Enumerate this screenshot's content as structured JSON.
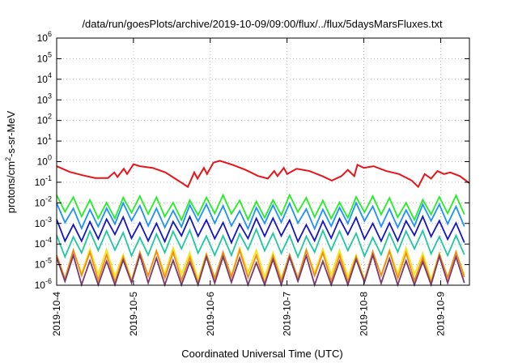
{
  "chart_data": {
    "type": "line",
    "title": "/data/run/goesPlots/archive/2019-10-09/09:00/flux/../flux/5daysMarsFluxes.txt",
    "xlabel": "Coordinated Universal Time (UTC)",
    "ylabel": {
      "pre": "protons/cm",
      "sup": "2",
      "post": "-s-sr-MeV"
    },
    "yscale": "log",
    "ylim": [
      1e-06,
      1000000.0
    ],
    "xlim": [
      "2019-10-04T00:00",
      "2019-10-09T09:00"
    ],
    "grid": true,
    "y_ticks": [
      {
        "value": 1e-06,
        "base": "10",
        "exp": "-6"
      },
      {
        "value": 1e-05,
        "base": "10",
        "exp": "-5"
      },
      {
        "value": 0.0001,
        "base": "10",
        "exp": "-4"
      },
      {
        "value": 0.001,
        "base": "10",
        "exp": "-3"
      },
      {
        "value": 0.01,
        "base": "10",
        "exp": "-2"
      },
      {
        "value": 0.1,
        "base": "10",
        "exp": "-1"
      },
      {
        "value": 1.0,
        "base": "10",
        "exp": "0"
      },
      {
        "value": 10.0,
        "base": "10",
        "exp": "1"
      },
      {
        "value": 100.0,
        "base": "10",
        "exp": "2"
      },
      {
        "value": 1000.0,
        "base": "10",
        "exp": "3"
      },
      {
        "value": 10000.0,
        "base": "10",
        "exp": "4"
      },
      {
        "value": 100000.0,
        "base": "10",
        "exp": "5"
      },
      {
        "value": 1000000.0,
        "base": "10",
        "exp": "6"
      }
    ],
    "x_ticks": [
      "2019-10-4",
      "2019-10-5",
      "2019-10-6",
      "2019-10-7",
      "2019-10-8",
      "2019-10-9"
    ],
    "series": [
      {
        "color": "#e8141a",
        "x": [
          "2019-10-04T00:00",
          "2019-10-04T04:00",
          "2019-10-04T08:00",
          "2019-10-04T12:00",
          "2019-10-04T16:00",
          "2019-10-04T18:00",
          "2019-10-04T19:00",
          "2019-10-04T21:00",
          "2019-10-04T22:00",
          "2019-10-05T00:00",
          "2019-10-05T02:00",
          "2019-10-05T06:00",
          "2019-10-05T10:00",
          "2019-10-05T14:00",
          "2019-10-05T17:00",
          "2019-10-05T19:00",
          "2019-10-05T20:00",
          "2019-10-05T22:00",
          "2019-10-05T23:00",
          "2019-10-06T01:00",
          "2019-10-06T03:00",
          "2019-10-06T07:00",
          "2019-10-06T11:00",
          "2019-10-06T15:00",
          "2019-10-06T18:00",
          "2019-10-06T20:00",
          "2019-10-06T21:00",
          "2019-10-06T23:00",
          "2019-10-07T00:00",
          "2019-10-07T03:00",
          "2019-10-07T07:00",
          "2019-10-07T11:00",
          "2019-10-07T14:00",
          "2019-10-07T17:00",
          "2019-10-07T19:00",
          "2019-10-07T21:00",
          "2019-10-07T22:00",
          "2019-10-08T00:00",
          "2019-10-08T03:00",
          "2019-10-08T07:00",
          "2019-10-08T11:00",
          "2019-10-08T15:00",
          "2019-10-08T17:00",
          "2019-10-08T19:00",
          "2019-10-08T21:00",
          "2019-10-08T23:00",
          "2019-10-09T01:00",
          "2019-10-09T03:00",
          "2019-10-09T06:00",
          "2019-10-09T09:00"
        ],
        "y": [
          0.6,
          0.32,
          0.22,
          0.16,
          0.16,
          0.3,
          0.18,
          0.45,
          0.25,
          0.75,
          0.6,
          0.5,
          0.3,
          0.12,
          0.06,
          0.3,
          0.15,
          0.5,
          0.25,
          0.9,
          1.1,
          0.7,
          0.4,
          0.2,
          0.15,
          0.35,
          0.2,
          0.5,
          0.25,
          0.45,
          0.35,
          0.2,
          0.12,
          0.2,
          0.4,
          0.2,
          0.7,
          0.5,
          0.6,
          0.35,
          0.25,
          0.12,
          0.06,
          0.25,
          0.15,
          0.35,
          0.25,
          0.3,
          0.2,
          0.09
        ]
      },
      {
        "color": "#22ee22",
        "base": 0.005,
        "amp": 3.4,
        "drift": 0.55,
        "offset": 0.0
      },
      {
        "color": "#1e90ff",
        "base": 0.002,
        "amp": 3.6,
        "drift": 0.55,
        "offset": 0.05
      },
      {
        "color": "#1515c8",
        "base": 0.0004,
        "amp": 4.0,
        "drift": 0.55,
        "offset": 0.1
      },
      {
        "color": "#20c8a0",
        "base": 9e-05,
        "amp": 4.5,
        "drift": 0.55,
        "offset": 0.15
      },
      {
        "color": "#f5e61a",
        "base": 8e-06,
        "amp": 6.0,
        "drift": 0.5,
        "offset": 0.2
      },
      {
        "color": "#f08a1a",
        "base": 6e-06,
        "amp": 6.5,
        "drift": 0.5,
        "offset": 0.25
      },
      {
        "color": "#7a3a6e",
        "base": 3e-06,
        "amp": 7.5,
        "drift": 0.5,
        "offset": 0.3
      }
    ]
  }
}
